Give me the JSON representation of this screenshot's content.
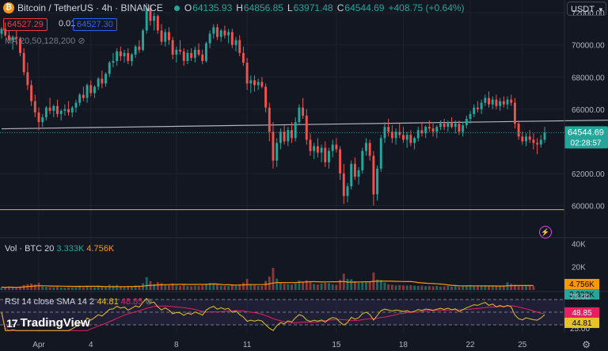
{
  "header": {
    "symbol": "Bitcoin / TetherUS · 4h · BINANCE",
    "o_label": "O",
    "o_value": "64135.93",
    "h_label": "H",
    "h_value": "64856.85",
    "l_label": "L",
    "l_value": "63971.48",
    "c_label": "C",
    "c_value": "64544.69",
    "change": "+408.75 (+0.64%)",
    "currency": "USDT"
  },
  "order_boxes": {
    "sell": "64527.29",
    "spread": "0.01",
    "buy": "64527.30"
  },
  "ma_legend": "MA 20,50,128,200",
  "volume_legend": {
    "label": "Vol · BTC 20",
    "v1": "3.333K",
    "v2": "4.756K"
  },
  "rsi_legend": {
    "label": "RSI 14 close SMA 14 2",
    "v1": "44.81",
    "v2": "48.85"
  },
  "brand": "TradingView",
  "colors": {
    "up": "#26a69a",
    "down": "#ef5350",
    "bg": "#131722",
    "rsi": "#e6c229",
    "rsi_ma": "#e91e63"
  },
  "chart_data": {
    "type": "candlestick",
    "title": "Bitcoin / TetherUS · 4h · BINANCE",
    "y_ticks": [
      "72000.00",
      "70000.00",
      "68000.00",
      "66000.00",
      "62000.00",
      "60000.00"
    ],
    "x_ticks": [
      "Apr",
      "4",
      "8",
      "11",
      "15",
      "18",
      "22",
      "25"
    ],
    "ylim": [
      58200,
      72600
    ],
    "last_price": "64544.69",
    "countdown": "02:28:57",
    "trendline": {
      "from": [
        0,
        64780
      ],
      "to": [
        170,
        65340
      ]
    },
    "horizontal_level": 59750,
    "candles": [
      [
        70700,
        71100,
        70400,
        71000
      ],
      [
        71000,
        71400,
        70500,
        70600
      ],
      [
        70600,
        70900,
        70100,
        70300
      ],
      [
        70300,
        70600,
        69700,
        70500
      ],
      [
        70500,
        70900,
        70000,
        70400
      ],
      [
        70400,
        70500,
        69300,
        69500
      ],
      [
        69500,
        69800,
        68100,
        68300
      ],
      [
        68300,
        68900,
        67200,
        67500
      ],
      [
        67500,
        67800,
        66200,
        66500
      ],
      [
        66500,
        66900,
        65500,
        65800
      ],
      [
        65800,
        66100,
        64700,
        65200
      ],
      [
        65200,
        65700,
        64900,
        65500
      ],
      [
        65500,
        66200,
        65300,
        66100
      ],
      [
        66100,
        66700,
        65700,
        65900
      ],
      [
        65900,
        66300,
        65500,
        66200
      ],
      [
        66200,
        66600,
        65500,
        65700
      ],
      [
        65700,
        66000,
        65300,
        65900
      ],
      [
        65900,
        66300,
        65600,
        66000
      ],
      [
        66000,
        66500,
        65600,
        65800
      ],
      [
        65800,
        66200,
        65500,
        66100
      ],
      [
        66100,
        66600,
        65800,
        66400
      ],
      [
        66400,
        67000,
        66200,
        66900
      ],
      [
        66900,
        67400,
        66500,
        66700
      ],
      [
        66700,
        67600,
        66400,
        67500
      ],
      [
        67500,
        67800,
        66800,
        67000
      ],
      [
        67000,
        67500,
        66700,
        67400
      ],
      [
        67400,
        68000,
        67200,
        67900
      ],
      [
        67900,
        68400,
        67300,
        67600
      ],
      [
        67600,
        68300,
        67400,
        68200
      ],
      [
        68200,
        69000,
        68000,
        68900
      ],
      [
        68900,
        69500,
        68600,
        69000
      ],
      [
        69000,
        69800,
        68700,
        69600
      ],
      [
        69600,
        69900,
        69000,
        69300
      ],
      [
        69300,
        69700,
        68900,
        69500
      ],
      [
        69500,
        69800,
        68800,
        69000
      ],
      [
        69000,
        69500,
        68700,
        69400
      ],
      [
        69400,
        70000,
        69200,
        69900
      ],
      [
        69900,
        70300,
        69500,
        69700
      ],
      [
        69700,
        71000,
        69600,
        70900
      ],
      [
        70900,
        72600,
        70700,
        72300
      ],
      [
        72300,
        72500,
        71200,
        71500
      ],
      [
        71500,
        72000,
        70900,
        71800
      ],
      [
        71800,
        71900,
        70700,
        70900
      ],
      [
        70900,
        71300,
        70000,
        70200
      ],
      [
        70200,
        71000,
        69900,
        70800
      ],
      [
        70800,
        71100,
        70000,
        70300
      ],
      [
        70300,
        70500,
        69100,
        69400
      ],
      [
        69400,
        69900,
        68900,
        69700
      ],
      [
        69700,
        70300,
        69400,
        69600
      ],
      [
        69600,
        69800,
        68700,
        69000
      ],
      [
        69000,
        69700,
        68800,
        69500
      ],
      [
        69500,
        69800,
        69000,
        69200
      ],
      [
        69200,
        69900,
        68900,
        69700
      ],
      [
        69700,
        70100,
        69300,
        69400
      ],
      [
        69400,
        69700,
        68800,
        69000
      ],
      [
        69000,
        70200,
        68900,
        70100
      ],
      [
        70100,
        70900,
        69800,
        70700
      ],
      [
        70700,
        71300,
        70400,
        71100
      ],
      [
        71100,
        71300,
        70300,
        70500
      ],
      [
        70500,
        71000,
        70200,
        70900
      ],
      [
        70900,
        71200,
        70400,
        70600
      ],
      [
        70600,
        71000,
        70100,
        70800
      ],
      [
        70800,
        71000,
        69800,
        70000
      ],
      [
        70000,
        70500,
        69600,
        70300
      ],
      [
        70300,
        70600,
        69300,
        69500
      ],
      [
        69500,
        69900,
        68700,
        68900
      ],
      [
        68900,
        69200,
        67200,
        67600
      ],
      [
        67600,
        68100,
        67000,
        67800
      ],
      [
        67800,
        68100,
        67100,
        67500
      ],
      [
        67500,
        67900,
        67200,
        67700
      ],
      [
        67700,
        68000,
        67300,
        67400
      ],
      [
        67400,
        67600,
        65800,
        66100
      ],
      [
        66100,
        66400,
        64000,
        64600
      ],
      [
        64600,
        65200,
        62300,
        62800
      ],
      [
        62800,
        64200,
        62400,
        63900
      ],
      [
        63900,
        64800,
        63500,
        64600
      ],
      [
        64600,
        65000,
        63800,
        64000
      ],
      [
        64000,
        64900,
        63700,
        64700
      ],
      [
        64700,
        65200,
        63900,
        64200
      ],
      [
        64200,
        65500,
        64000,
        65200
      ],
      [
        65200,
        66300,
        65000,
        66100
      ],
      [
        66100,
        66700,
        65400,
        65600
      ],
      [
        65600,
        66000,
        63800,
        64100
      ],
      [
        64100,
        64500,
        63100,
        63400
      ],
      [
        63400,
        63900,
        62900,
        63700
      ],
      [
        63700,
        64200,
        63000,
        63300
      ],
      [
        63300,
        63800,
        62700,
        63600
      ],
      [
        63600,
        64000,
        62400,
        62700
      ],
      [
        62700,
        63600,
        62300,
        63400
      ],
      [
        63400,
        64100,
        63000,
        63800
      ],
      [
        63800,
        64200,
        63300,
        63500
      ],
      [
        63500,
        63700,
        61600,
        62000
      ],
      [
        62000,
        62600,
        60100,
        60600
      ],
      [
        60600,
        61400,
        60200,
        61200
      ],
      [
        61200,
        62800,
        61000,
        62600
      ],
      [
        62600,
        63000,
        61600,
        61800
      ],
      [
        61800,
        62400,
        61300,
        62200
      ],
      [
        62200,
        63600,
        62000,
        63400
      ],
      [
        63400,
        64200,
        63100,
        63900
      ],
      [
        63900,
        64100,
        62800,
        63100
      ],
      [
        63100,
        63400,
        60000,
        60700
      ],
      [
        60700,
        62500,
        60300,
        62300
      ],
      [
        62300,
        64400,
        62100,
        64200
      ],
      [
        64200,
        65200,
        63900,
        64900
      ],
      [
        64900,
        65400,
        64300,
        64600
      ],
      [
        64600,
        65000,
        63900,
        64200
      ],
      [
        64200,
        64800,
        63800,
        64600
      ],
      [
        64600,
        65100,
        64200,
        64400
      ],
      [
        64400,
        64900,
        63900,
        64100
      ],
      [
        64100,
        64600,
        63600,
        64400
      ],
      [
        64400,
        64700,
        63700,
        63900
      ],
      [
        63900,
        64300,
        63500,
        64200
      ],
      [
        64200,
        64900,
        64000,
        64700
      ],
      [
        64700,
        65200,
        64300,
        64500
      ],
      [
        64500,
        65000,
        64200,
        64900
      ],
      [
        64900,
        65300,
        64600,
        64800
      ],
      [
        64800,
        65100,
        64300,
        64600
      ],
      [
        64600,
        65000,
        64200,
        64900
      ],
      [
        64900,
        65300,
        64700,
        65100
      ],
      [
        65100,
        65400,
        64700,
        64900
      ],
      [
        64900,
        65300,
        64600,
        65200
      ],
      [
        65200,
        65500,
        64800,
        64900
      ],
      [
        64900,
        65300,
        64500,
        65100
      ],
      [
        65100,
        65300,
        64400,
        64600
      ],
      [
        64600,
        65200,
        64300,
        65000
      ],
      [
        65000,
        65600,
        64800,
        65400
      ],
      [
        65400,
        65900,
        65100,
        65700
      ],
      [
        65700,
        66300,
        65500,
        66100
      ],
      [
        66100,
        66500,
        65800,
        66000
      ],
      [
        66000,
        66600,
        65700,
        66400
      ],
      [
        66400,
        66900,
        66200,
        66700
      ],
      [
        66700,
        67100,
        66100,
        66300
      ],
      [
        66300,
        66800,
        66000,
        66600
      ],
      [
        66600,
        66900,
        66000,
        66200
      ],
      [
        66200,
        66700,
        65900,
        66500
      ],
      [
        66500,
        66800,
        66100,
        66300
      ],
      [
        66300,
        66800,
        66000,
        66600
      ],
      [
        66600,
        66900,
        66200,
        66400
      ],
      [
        66400,
        66700,
        64800,
        65100
      ],
      [
        65100,
        65300,
        64100,
        64300
      ],
      [
        64300,
        64600,
        63800,
        64000
      ],
      [
        64000,
        64500,
        63700,
        64300
      ],
      [
        64300,
        64700,
        63900,
        64100
      ],
      [
        64100,
        64500,
        63500,
        63900
      ],
      [
        63900,
        64200,
        63200,
        63800
      ],
      [
        63800,
        64400,
        63600,
        64100
      ],
      [
        64100,
        64900,
        63900,
        64545
      ]
    ],
    "volume": {
      "ylim": [
        0,
        45000
      ],
      "y_ticks": [
        "40K",
        "20K"
      ],
      "values": [
        2500,
        2200,
        2800,
        2000,
        1900,
        3000,
        4200,
        5000,
        5500,
        4800,
        6200,
        3000,
        2600,
        2400,
        2300,
        2600,
        2100,
        2000,
        2300,
        2200,
        2400,
        2800,
        2300,
        3600,
        2500,
        2300,
        3800,
        3000,
        2900,
        4500,
        3800,
        4400,
        3200,
        2800,
        3500,
        2900,
        3900,
        3300,
        5800,
        11000,
        7600,
        5200,
        6800,
        5900,
        4600,
        4200,
        5600,
        4000,
        3600,
        4300,
        3400,
        3100,
        3600,
        3400,
        3900,
        5400,
        6100,
        5800,
        4900,
        3800,
        3600,
        3400,
        4600,
        3700,
        4900,
        6300,
        9500,
        5200,
        4200,
        3400,
        3600,
        7800,
        11500,
        19000,
        9800,
        6800,
        5400,
        5100,
        4800,
        5700,
        8200,
        6400,
        8400,
        6800,
        5200,
        4700,
        5600,
        6200,
        5900,
        4800,
        4400,
        8800,
        14000,
        9600,
        9200,
        7400,
        6100,
        7200,
        6600,
        7000,
        15000,
        9000,
        8600,
        6300,
        4800,
        4500,
        3900,
        4200,
        4000,
        3800,
        4100,
        3700,
        3400,
        3700,
        3300,
        3500,
        3200,
        3600,
        3000,
        3100,
        3500,
        2900,
        3300,
        3000,
        3800,
        4100,
        4300,
        3700,
        3500,
        3600,
        3300,
        3200,
        3400,
        3100,
        3500,
        3300,
        6500,
        5300,
        4600,
        3900,
        3600,
        3800,
        3500,
        3333
      ],
      "ma_last": 4756
    },
    "rsi": {
      "ylim": [
        20,
        80
      ],
      "bands": [
        70,
        50,
        30
      ],
      "y_ticks": [
        "75.00",
        "25.00"
      ],
      "last": 44.81,
      "ma_last": 48.85
    }
  }
}
